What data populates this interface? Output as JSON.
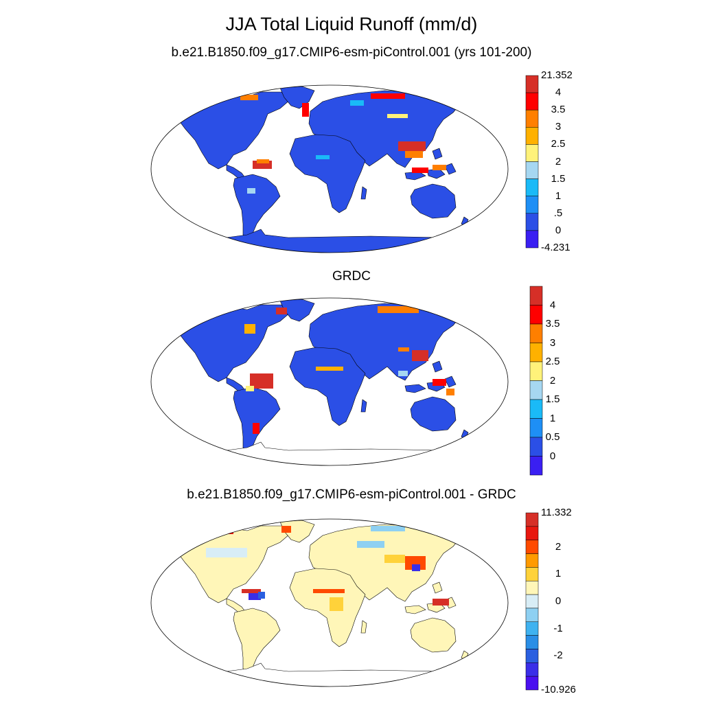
{
  "title": "JJA Total Liquid Runoff (mm/d)",
  "panels": [
    {
      "subtitle": "b.e21.B1850.f09_g17.CMIP6-esm-piControl.001 (yrs 101-200)",
      "colorbar": {
        "colors": [
          "#d62f27",
          "#ff0000",
          "#ff7f00",
          "#ffb100",
          "#fff27a",
          "#a6d7f1",
          "#1abaf7",
          "#1e8ff5",
          "#2b4fe6",
          "#3a1ff2"
        ],
        "top_label": "21.352",
        "labels": [
          "4",
          "3.5",
          "3",
          "2.5",
          "2",
          "1.5",
          "1",
          ".5",
          "0"
        ],
        "bottom_label": "-4.231"
      }
    },
    {
      "subtitle": "GRDC",
      "colorbar": {
        "colors": [
          "#d62f27",
          "#ff0000",
          "#ff7f00",
          "#ffb100",
          "#fff27a",
          "#a6d7f1",
          "#1abaf7",
          "#1e8ff5",
          "#2b4fe6",
          "#3a1ff2"
        ],
        "top_label": "",
        "labels": [
          "4",
          "3.5",
          "3",
          "2.5",
          "2",
          "1.5",
          "1",
          "0.5",
          "0"
        ],
        "bottom_label": ""
      }
    },
    {
      "subtitle": "b.e21.B1850.f09_g17.CMIP6-esm-piControl.001 - GRDC",
      "colorbar": {
        "colors": [
          "#d62f27",
          "#e8170f",
          "#ff4a00",
          "#ff9a00",
          "#ffd23a",
          "#fff6b8",
          "#d8edf6",
          "#8ed0f2",
          "#3fb2f0",
          "#2a8ee6",
          "#2a5fe0",
          "#3a2ee8",
          "#4a10f0"
        ],
        "top_label": "11.332",
        "labels": [
          "2",
          "1",
          "0",
          "-1",
          "-2"
        ],
        "bottom_label": "-10.926"
      }
    }
  ]
}
